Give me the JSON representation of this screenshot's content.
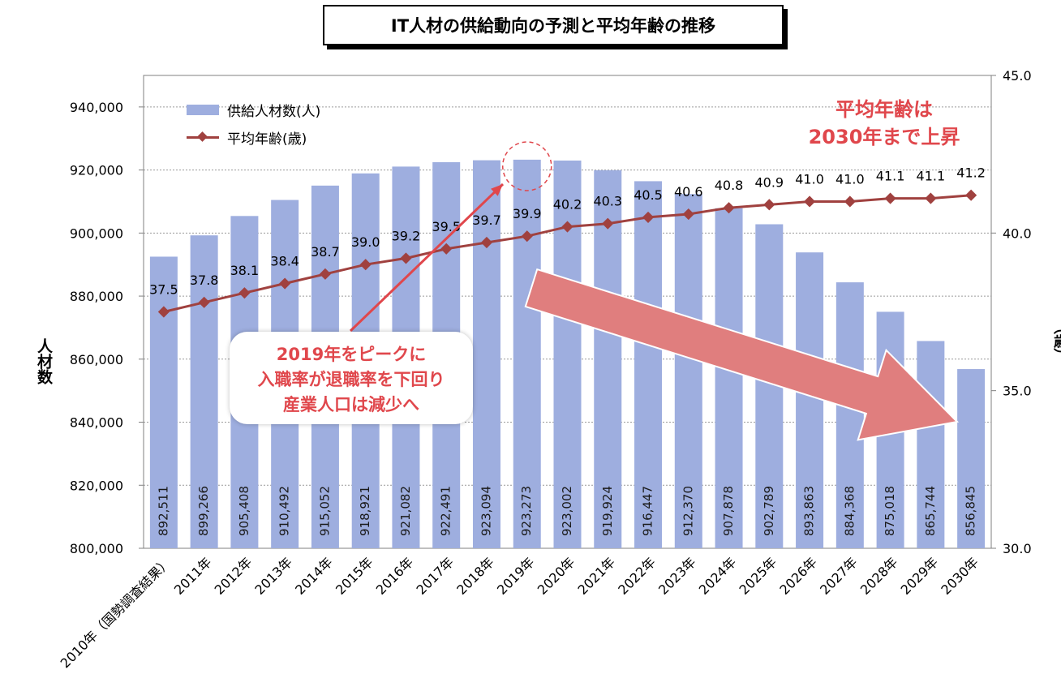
{
  "title": "IT人材の供給動向の予測と平均年齢の推移",
  "y_left_label": "人材数",
  "y_right_label": "（歳）",
  "legend": {
    "bar": "供給人材数(人)",
    "line": "平均年齢(歳)"
  },
  "annotations": {
    "top_right": [
      "平均年齢は",
      "2030年まで上昇"
    ],
    "box": [
      "2019年をピークに",
      "入職率が退職率を下回り",
      "産業人口は減少へ"
    ]
  },
  "colors": {
    "bar": "#9eaedf",
    "line": "#a0413f",
    "arrow": "#e07e7e",
    "accent_text": "#e0474c"
  },
  "chart_data": {
    "type": "bar",
    "categories": [
      "2010年（国勢調査結果）",
      "2011年",
      "2012年",
      "2013年",
      "2014年",
      "2015年",
      "2016年",
      "2017年",
      "2018年",
      "2019年",
      "2020年",
      "2021年",
      "2022年",
      "2023年",
      "2024年",
      "2025年",
      "2026年",
      "2027年",
      "2028年",
      "2029年",
      "2030年"
    ],
    "series": [
      {
        "name": "供給人材数(人)",
        "type": "bar",
        "axis": "left",
        "values": [
          892511,
          899266,
          905408,
          910492,
          915052,
          918921,
          921082,
          922491,
          923094,
          923273,
          923002,
          919924,
          916447,
          912370,
          907878,
          902789,
          893863,
          884368,
          875018,
          865744,
          856845
        ],
        "labels": [
          "892,511",
          "899,266",
          "905,408",
          "910,492",
          "915,052",
          "918,921",
          "921,082",
          "922,491",
          "923,094",
          "923,273",
          "923,002",
          "919,924",
          "916,447",
          "912,370",
          "907,878",
          "902,789",
          "893,863",
          "884,368",
          "875,018",
          "865,744",
          "856,845"
        ]
      },
      {
        "name": "平均年齢(歳)",
        "type": "line",
        "axis": "right",
        "values": [
          37.5,
          37.8,
          38.1,
          38.4,
          38.7,
          39.0,
          39.2,
          39.5,
          39.7,
          39.9,
          40.2,
          40.3,
          40.5,
          40.6,
          40.8,
          40.9,
          41.0,
          41.0,
          41.1,
          41.1,
          41.2
        ],
        "labels": [
          "37.5",
          "37.8",
          "38.1",
          "38.4",
          "38.7",
          "39.0",
          "39.2",
          "39.5",
          "39.7",
          "39.9",
          "40.2",
          "40.3",
          "40.5",
          "40.6",
          "40.8",
          "40.9",
          "41.0",
          "41.0",
          "41.1",
          "41.1",
          "41.2"
        ]
      }
    ],
    "y_left": {
      "min": 800000,
      "max": 950000,
      "ticks": [
        "800,000",
        "820,000",
        "840,000",
        "860,000",
        "880,000",
        "900,000",
        "920,000",
        "940,000"
      ]
    },
    "y_right": {
      "min": 30.0,
      "max": 45.0,
      "ticks": [
        "30.0",
        "35.0",
        "40.0",
        "45.0"
      ]
    },
    "grid": "horizontal dotted"
  }
}
